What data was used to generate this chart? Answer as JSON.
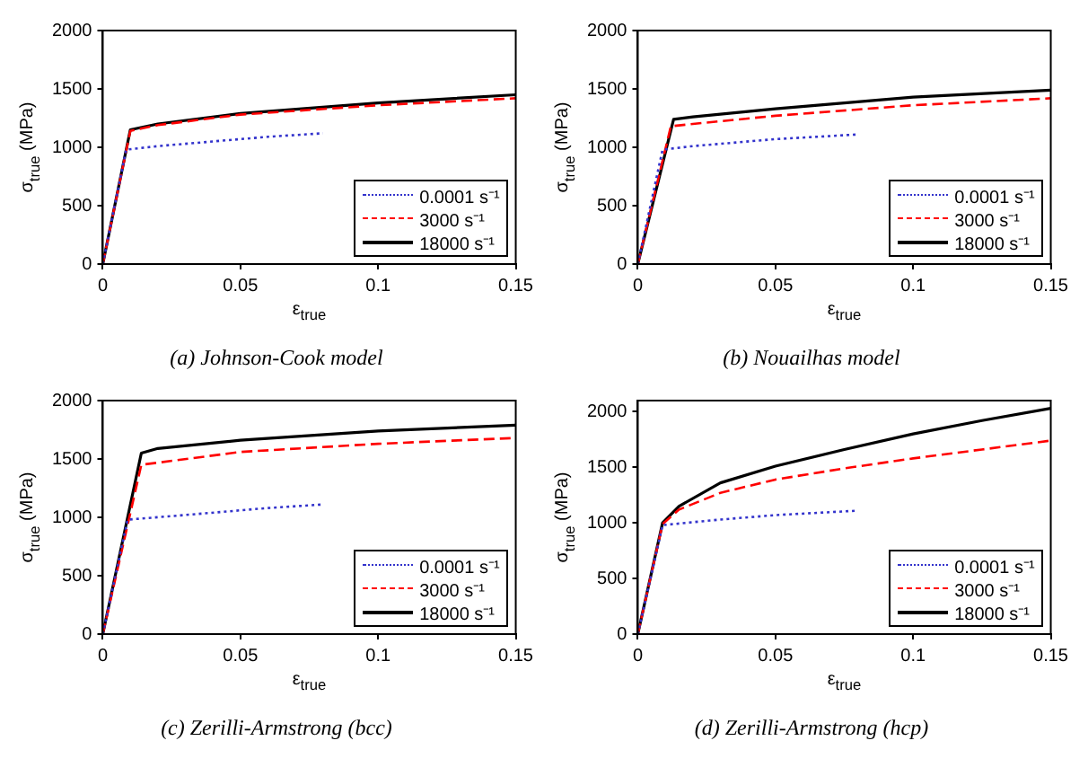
{
  "chart_data": [
    {
      "type": "line",
      "title": "(a)   Johnson-Cook model",
      "xlabel": "ε$_{true}$",
      "ylabel": "σ$_{true}$ (MPa)",
      "xlim": [
        0,
        0.15
      ],
      "xticks": [
        0,
        0.05,
        0.1,
        0.15
      ],
      "ylim": [
        0,
        2000
      ],
      "yticks": [
        0,
        500,
        1000,
        1500,
        2000
      ],
      "grid": false,
      "legend": "bottom right",
      "series": [
        {
          "name": "0.0001 s⁻¹",
          "color": "#3333cc",
          "line_style": "dotted",
          "x": [
            0,
            0.0085,
            0.02,
            0.04,
            0.06,
            0.08
          ],
          "values": [
            0,
            980,
            1010,
            1050,
            1090,
            1120
          ]
        },
        {
          "name": "3000 s⁻¹",
          "color": "#ff0000",
          "line_style": "dashed",
          "x": [
            0,
            0.01,
            0.02,
            0.05,
            0.1,
            0.15
          ],
          "values": [
            0,
            1140,
            1190,
            1280,
            1360,
            1420
          ]
        },
        {
          "name": "18000 s⁻¹",
          "color": "#000000",
          "line_style": "solid",
          "x": [
            0,
            0.01,
            0.02,
            0.05,
            0.1,
            0.15
          ],
          "values": [
            0,
            1150,
            1200,
            1290,
            1380,
            1450
          ]
        }
      ]
    },
    {
      "type": "line",
      "title": "(b)   Nouailhas model",
      "xlabel": "ε$_{true}$",
      "ylabel": "σ$_{true}$ (MPa)",
      "xlim": [
        0,
        0.15
      ],
      "xticks": [
        0,
        0.05,
        0.1,
        0.15
      ],
      "ylim": [
        0,
        2000
      ],
      "yticks": [
        0,
        500,
        1000,
        1500,
        2000
      ],
      "grid": false,
      "legend": "bottom right",
      "series": [
        {
          "name": "0.0001 s⁻¹",
          "color": "#3333cc",
          "line_style": "dotted",
          "x": [
            0,
            0.009,
            0.02,
            0.05,
            0.08
          ],
          "values": [
            0,
            980,
            1010,
            1070,
            1110
          ]
        },
        {
          "name": "3000 s⁻¹",
          "color": "#ff0000",
          "line_style": "dashed",
          "x": [
            0,
            0.012,
            0.02,
            0.05,
            0.1,
            0.15
          ],
          "values": [
            0,
            1180,
            1200,
            1270,
            1360,
            1420
          ]
        },
        {
          "name": "18000 s⁻¹",
          "color": "#000000",
          "line_style": "solid",
          "x": [
            0,
            0.013,
            0.02,
            0.05,
            0.1,
            0.15
          ],
          "values": [
            0,
            1240,
            1260,
            1330,
            1430,
            1490
          ]
        }
      ]
    },
    {
      "type": "line",
      "title": "(c)   Zerilli-Armstrong (bcc)",
      "xlabel": "ε$_{true}$",
      "ylabel": "σ$_{true}$ (MPa)",
      "xlim": [
        0,
        0.15
      ],
      "xticks": [
        0,
        0.05,
        0.1,
        0.15
      ],
      "ylim": [
        0,
        2000
      ],
      "yticks": [
        0,
        500,
        1000,
        1500,
        2000
      ],
      "grid": false,
      "legend": "bottom right",
      "series": [
        {
          "name": "0.0001 s⁻¹",
          "color": "#3333cc",
          "line_style": "dotted",
          "x": [
            0,
            0.009,
            0.03,
            0.06,
            0.08
          ],
          "values": [
            0,
            980,
            1020,
            1080,
            1110
          ]
        },
        {
          "name": "3000 s⁻¹",
          "color": "#ff0000",
          "line_style": "dashed",
          "x": [
            0,
            0.014,
            0.05,
            0.1,
            0.15
          ],
          "values": [
            0,
            1450,
            1560,
            1630,
            1680
          ]
        },
        {
          "name": "18000 s⁻¹",
          "color": "#000000",
          "line_style": "solid",
          "x": [
            0,
            0.014,
            0.02,
            0.05,
            0.1,
            0.15
          ],
          "values": [
            0,
            1550,
            1590,
            1660,
            1740,
            1790
          ]
        }
      ]
    },
    {
      "type": "line",
      "title": "(d)   Zerilli-Armstrong (hcp)",
      "xlabel": "ε$_{true}$",
      "ylabel": "σ$_{true}$ (MPa)",
      "xlim": [
        0,
        0.15
      ],
      "xticks": [
        0,
        0.05,
        0.1,
        0.15
      ],
      "ylim": [
        0,
        2100
      ],
      "yticks": [
        0,
        500,
        1000,
        1500,
        2000
      ],
      "grid": false,
      "legend": "bottom right",
      "series": [
        {
          "name": "0.0001 s⁻¹",
          "color": "#3333cc",
          "line_style": "dotted",
          "x": [
            0,
            0.009,
            0.03,
            0.05,
            0.08
          ],
          "values": [
            0,
            980,
            1030,
            1070,
            1110
          ]
        },
        {
          "name": "3000 s⁻¹",
          "color": "#ff0000",
          "line_style": "dashed",
          "x": [
            0,
            0.009,
            0.015,
            0.03,
            0.05,
            0.075,
            0.1,
            0.125,
            0.15
          ],
          "values": [
            0,
            990,
            1120,
            1270,
            1390,
            1490,
            1580,
            1660,
            1740
          ]
        },
        {
          "name": "18000 s⁻¹",
          "color": "#000000",
          "line_style": "solid",
          "x": [
            0,
            0.009,
            0.015,
            0.03,
            0.05,
            0.075,
            0.1,
            0.125,
            0.15
          ],
          "values": [
            0,
            1000,
            1150,
            1360,
            1510,
            1660,
            1800,
            1920,
            2030
          ]
        }
      ]
    }
  ]
}
